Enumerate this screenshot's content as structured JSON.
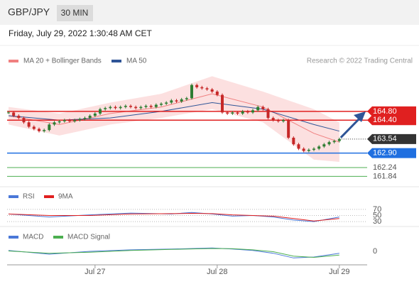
{
  "header": {
    "symbol": "GBP/JPY",
    "interval": "30 MIN",
    "timestamp": "Friday, July 29, 2022 1:30:48 AM CET"
  },
  "chart_data": [
    {
      "type": "candlestick",
      "legend": [
        {
          "name": "MA 20 + Bollinger Bands",
          "color": "#f08080"
        },
        {
          "name": "MA 50",
          "color": "#2f5597"
        }
      ],
      "credit": "Research © 2022 Trading Central",
      "xlim": [
        0,
        66
      ],
      "xticks": [
        {
          "value": 17,
          "label": "Jul 27"
        },
        {
          "value": 41,
          "label": "Jul 28"
        },
        {
          "value": 65,
          "label": "Jul 29"
        }
      ],
      "ylim": [
        161.4,
        166.8
      ],
      "closes": [
        164.75,
        164.6,
        164.5,
        164.3,
        164.1,
        164.0,
        163.9,
        163.95,
        164.2,
        164.3,
        164.35,
        164.4,
        164.35,
        164.4,
        164.45,
        164.5,
        164.6,
        164.7,
        164.9,
        164.95,
        165.0,
        164.95,
        165.0,
        165.05,
        165.0,
        164.95,
        165.0,
        165.05,
        165.0,
        165.1,
        165.15,
        165.2,
        165.3,
        165.25,
        165.35,
        165.4,
        166.0,
        165.9,
        165.85,
        165.8,
        165.7,
        165.55,
        164.75,
        164.7,
        164.75,
        164.7,
        164.8,
        164.75,
        164.85,
        165.0,
        164.9,
        164.5,
        164.4,
        164.35,
        164.4,
        163.6,
        163.3,
        163.1,
        163.0,
        163.05,
        163.1,
        163.2,
        163.3,
        163.4,
        163.45,
        163.54
      ],
      "up_color": "#2e7d32",
      "down_color": "#c62828",
      "band_x": [
        0,
        10,
        20,
        30,
        40,
        50,
        60,
        65
      ],
      "ma20": [
        164.6,
        164.2,
        164.7,
        165.0,
        165.6,
        165.0,
        163.8,
        163.4
      ],
      "upper": [
        165.0,
        164.7,
        165.2,
        165.6,
        166.4,
        165.7,
        164.9,
        164.3
      ],
      "lower": [
        164.2,
        163.7,
        164.2,
        164.5,
        164.9,
        164.3,
        162.6,
        162.5
      ],
      "ma50": [
        164.6,
        164.4,
        164.5,
        164.8,
        165.2,
        164.9,
        164.2,
        163.9
      ],
      "levels": [
        {
          "value": 164.8,
          "label": "164.80",
          "color": "#e02020",
          "style": "line-box"
        },
        {
          "value": 164.4,
          "label": "164.40",
          "color": "#e02020",
          "style": "line-box"
        },
        {
          "value": 163.54,
          "label": "163.54",
          "color": "#333333",
          "style": "dotted-box"
        },
        {
          "value": 162.9,
          "label": "162.90",
          "color": "#1f6fe0",
          "style": "line-box"
        },
        {
          "value": 162.24,
          "label": "162.24",
          "color": "#4caf50",
          "style": "line-text"
        },
        {
          "value": 161.84,
          "label": "161.84",
          "color": "#4caf50",
          "style": "line-text"
        }
      ]
    },
    {
      "type": "line",
      "panel": "rsi",
      "ylim": [
        0,
        100
      ],
      "yticks": [
        70,
        50,
        30
      ],
      "x": [
        0,
        8,
        16,
        24,
        32,
        36,
        40,
        44,
        48,
        52,
        56,
        60,
        65
      ],
      "series": [
        {
          "name": "RSI",
          "color": "#4a78d8",
          "values": [
            55,
            45,
            52,
            58,
            55,
            60,
            55,
            48,
            50,
            45,
            35,
            30,
            45
          ]
        },
        {
          "name": "9MA",
          "color": "#e02020",
          "values": [
            55,
            50,
            50,
            55,
            56,
            57,
            56,
            52,
            50,
            48,
            40,
            32,
            40
          ]
        }
      ]
    },
    {
      "type": "line",
      "panel": "macd",
      "ylim": [
        -0.6,
        0.6
      ],
      "yticks": [
        0
      ],
      "x": [
        0,
        8,
        16,
        24,
        32,
        40,
        44,
        48,
        52,
        56,
        60,
        65
      ],
      "series": [
        {
          "name": "MACD",
          "color": "#4a78d8",
          "values": [
            0.05,
            -0.15,
            0.0,
            0.08,
            0.12,
            0.18,
            0.12,
            0.05,
            -0.1,
            -0.35,
            -0.3,
            -0.1
          ]
        },
        {
          "name": "MACD Signal",
          "color": "#4caf50",
          "values": [
            0.02,
            -0.1,
            -0.05,
            0.05,
            0.1,
            0.15,
            0.14,
            0.08,
            -0.02,
            -0.25,
            -0.32,
            -0.2
          ]
        }
      ]
    }
  ]
}
